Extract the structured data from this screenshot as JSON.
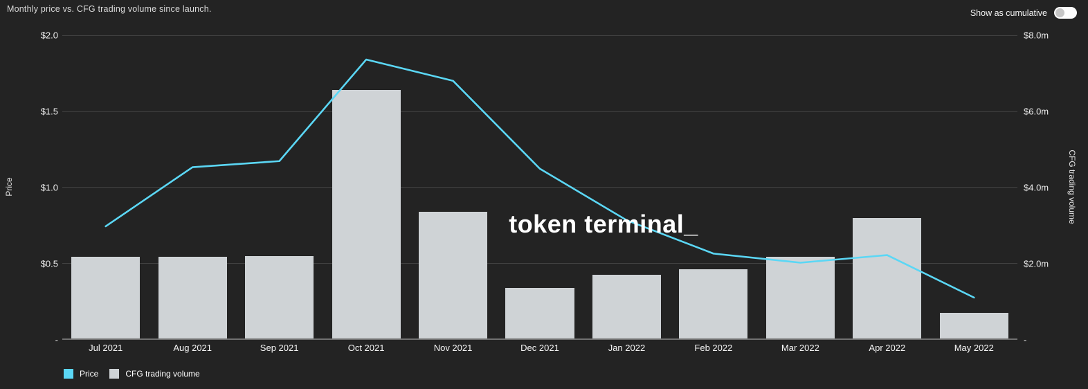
{
  "header": {
    "title": "Monthly price vs. CFG trading volume since launch.",
    "toggle_label": "Show as cumulative",
    "toggle_state": "off"
  },
  "watermark": "token terminal_",
  "colors": {
    "background": "#232323",
    "price_line": "#5bd7f5",
    "volume_bar": "#cfd3d6",
    "gridline": "#424242",
    "axis_baseline": "#717171",
    "toggle_track": "#fdfdfd",
    "toggle_knob": "#c6c6c6"
  },
  "chart_data": {
    "type": "bar+line",
    "title": "Monthly price vs. CFG trading volume since launch.",
    "categories": [
      "Jul 2021",
      "Aug 2021",
      "Sep 2021",
      "Oct 2021",
      "Nov 2021",
      "Dec 2021",
      "Jan 2022",
      "Feb 2022",
      "Mar 2022",
      "Apr 2022",
      "May 2022"
    ],
    "series": [
      {
        "name": "Price",
        "type": "line",
        "axis": "left",
        "unit": "USD",
        "color": "#5bd7f5",
        "values": [
          0.74,
          1.13,
          1.17,
          1.84,
          1.7,
          1.12,
          0.78,
          0.56,
          0.5,
          0.55,
          0.27
        ]
      },
      {
        "name": "CFG trading volume",
        "type": "bar",
        "axis": "right",
        "unit": "USD millions",
        "color": "#cfd3d6",
        "values": [
          2.15,
          2.15,
          2.18,
          6.55,
          3.34,
          1.33,
          1.68,
          1.82,
          2.15,
          3.17,
          0.67
        ]
      }
    ],
    "left_axis": {
      "label": "Price",
      "min": 0,
      "max": 2.0,
      "ticks": [
        "$2.0",
        "$1.5",
        "$1.0",
        "$0.5",
        "-"
      ]
    },
    "right_axis": {
      "label": "CFG trading volume",
      "min": 0,
      "max": 8.0,
      "ticks": [
        "$8.0m",
        "$6.0m",
        "$4.0m",
        "$2.0m",
        "-"
      ]
    },
    "grid": "horizontal",
    "legend_position": "bottom-left",
    "legend": [
      {
        "label": "Price",
        "color": "#5bd7f5"
      },
      {
        "label": "CFG trading volume",
        "color": "#cfd3d6"
      }
    ]
  }
}
